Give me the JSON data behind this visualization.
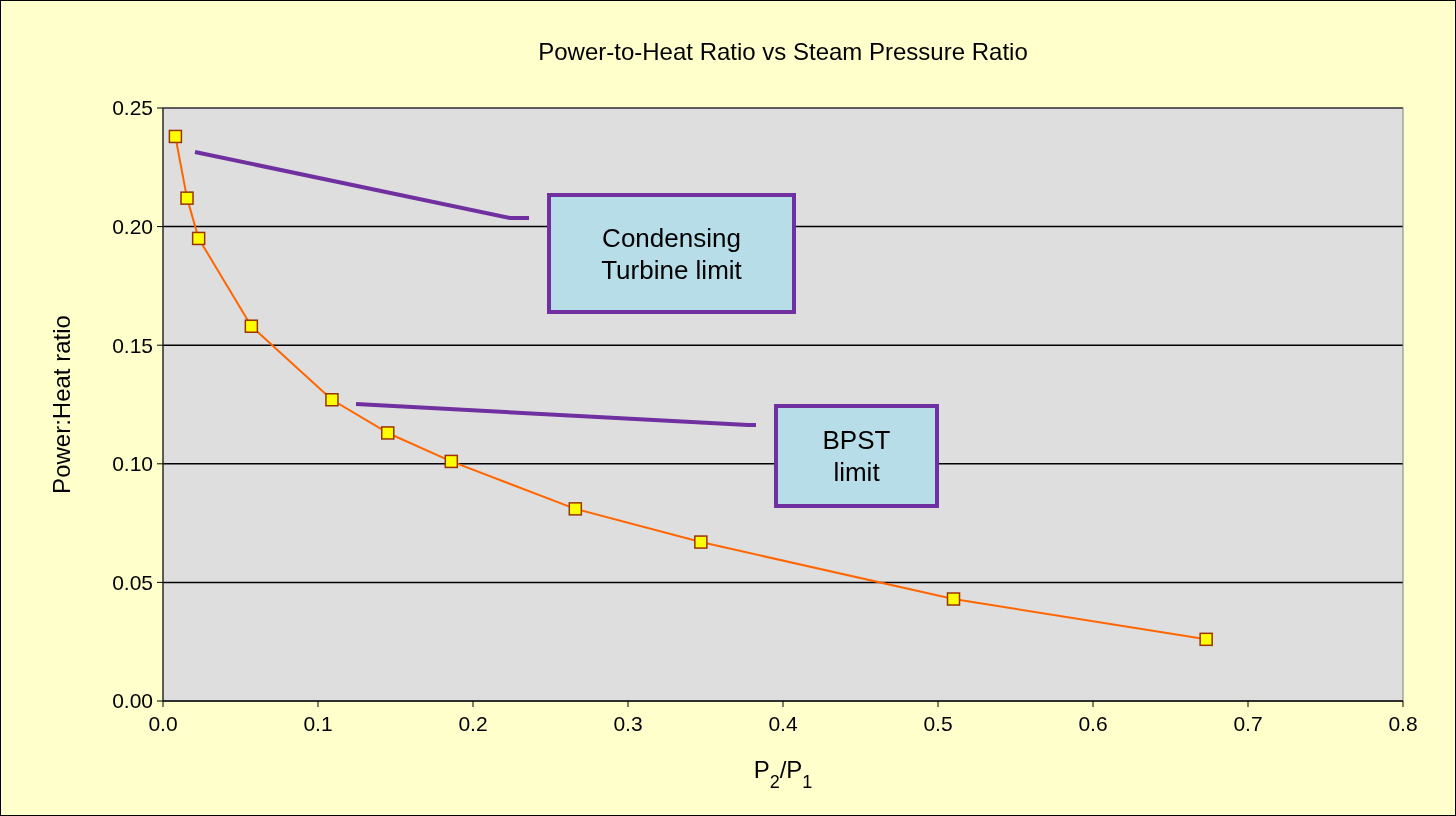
{
  "chart_data": {
    "type": "line",
    "title": "Power-to-Heat Ratio vs Steam Pressure Ratio",
    "xlabel": "P$_{2}$/P$_{1}$",
    "ylabel": "Power:Heat ratio",
    "series": [
      {
        "color": "#ff6600",
        "x": [
          0.008,
          0.0155,
          0.023,
          0.057,
          0.109,
          0.145,
          0.186,
          0.266,
          0.347,
          0.51,
          0.673
        ],
        "values": [
          0.238,
          0.212,
          0.195,
          0.158,
          0.127,
          0.113,
          0.101,
          0.081,
          0.067,
          0.043,
          0.026
        ]
      }
    ],
    "xlim": [
      0,
      0.8
    ],
    "xticks": [
      {
        "value": 0,
        "label": "0.0"
      },
      0.1,
      0.2,
      0.3,
      0.4,
      0.5,
      0.6,
      0.7,
      0.8
    ],
    "ylim": [
      0,
      0.25
    ],
    "yticks": [
      {
        "value": 0,
        "label": "0.00"
      },
      0.05,
      {
        "value": 0.1,
        "label": "0.10"
      },
      0.15,
      {
        "value": 0.2,
        "label": "0.20"
      },
      0.25
    ],
    "grid": "y",
    "marker": "square",
    "line_style": "solid",
    "annotations": [
      "Condensing Turbine limit",
      "BPST limit"
    ]
  }
}
